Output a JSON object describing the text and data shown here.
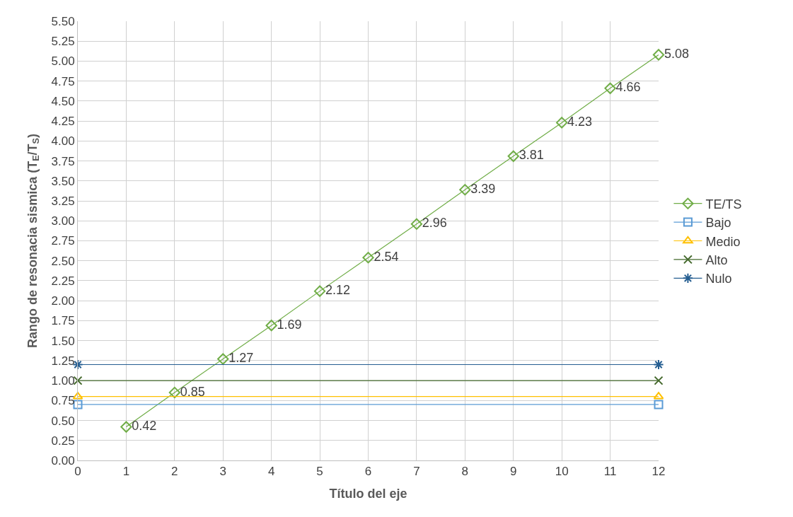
{
  "chart_data": {
    "type": "line",
    "xlabel": "Título del eje",
    "ylabel": "Rango de resonacia sismica (T$_{E}$/T$_{S}$)",
    "xlim": [
      0,
      12
    ],
    "xticks": [
      0,
      1,
      2,
      3,
      4,
      5,
      6,
      7,
      8,
      9,
      10,
      11,
      12
    ],
    "ylim": [
      0,
      5.5
    ],
    "yticks": [
      {
        "value": 0,
        "label": "0.00"
      },
      {
        "value": 0.25,
        "label": "0.25"
      },
      {
        "value": 0.5,
        "label": "0.50"
      },
      {
        "value": 0.75,
        "label": "0.75"
      },
      {
        "value": 1,
        "label": "1.00"
      },
      {
        "value": 1.25,
        "label": "1.25"
      },
      {
        "value": 1.5,
        "label": "1.50"
      },
      {
        "value": 1.75,
        "label": "1.75"
      },
      {
        "value": 2,
        "label": "2.00"
      },
      {
        "value": 2.25,
        "label": "2.25"
      },
      {
        "value": 2.5,
        "label": "2.50"
      },
      {
        "value": 2.75,
        "label": "2.75"
      },
      {
        "value": 3,
        "label": "3.00"
      },
      {
        "value": 3.25,
        "label": "3.25"
      },
      {
        "value": 3.5,
        "label": "3.50"
      },
      {
        "value": 3.75,
        "label": "3.75"
      },
      {
        "value": 4,
        "label": "4.00"
      },
      {
        "value": 4.25,
        "label": "4.25"
      },
      {
        "value": 4.5,
        "label": "4.50"
      },
      {
        "value": 4.75,
        "label": "4.75"
      },
      {
        "value": 5,
        "label": "5.00"
      },
      {
        "value": 5.25,
        "label": "5.25"
      },
      {
        "value": 5.5,
        "label": "5.50"
      }
    ],
    "grid": true,
    "legend": "right",
    "line_style": "solid",
    "series": [
      {
        "name": "TE/TS",
        "color": "#70ad47",
        "marker": "diamond",
        "x": [
          1,
          2,
          3,
          4,
          5,
          6,
          7,
          8,
          9,
          10,
          11,
          12
        ],
        "values": [
          0.42,
          0.85,
          1.27,
          1.69,
          2.12,
          2.54,
          2.96,
          3.39,
          3.81,
          4.23,
          4.66,
          5.08
        ],
        "value_labels": [
          "0.42",
          "0.85",
          "1.27",
          "1.69",
          "2.12",
          "2.54",
          "2.96",
          "3.39",
          "3.81",
          "4.23",
          "4.66",
          "5.08"
        ]
      },
      {
        "name": "Bajo",
        "color": "#5b9bd5",
        "marker": "square",
        "x": [
          0,
          12
        ],
        "values": [
          0.7,
          0.7
        ]
      },
      {
        "name": "Medio",
        "color": "#ffc000",
        "marker": "triangle",
        "x": [
          0,
          12
        ],
        "values": [
          0.8,
          0.8
        ]
      },
      {
        "name": "Alto",
        "color": "#43682b",
        "marker": "cross",
        "x": [
          0,
          12
        ],
        "values": [
          1.0,
          1.0
        ]
      },
      {
        "name": "Nulo",
        "color": "#255e91",
        "marker": "cross",
        "x": [
          0,
          12
        ],
        "values": [
          1.2,
          1.2
        ]
      }
    ]
  }
}
